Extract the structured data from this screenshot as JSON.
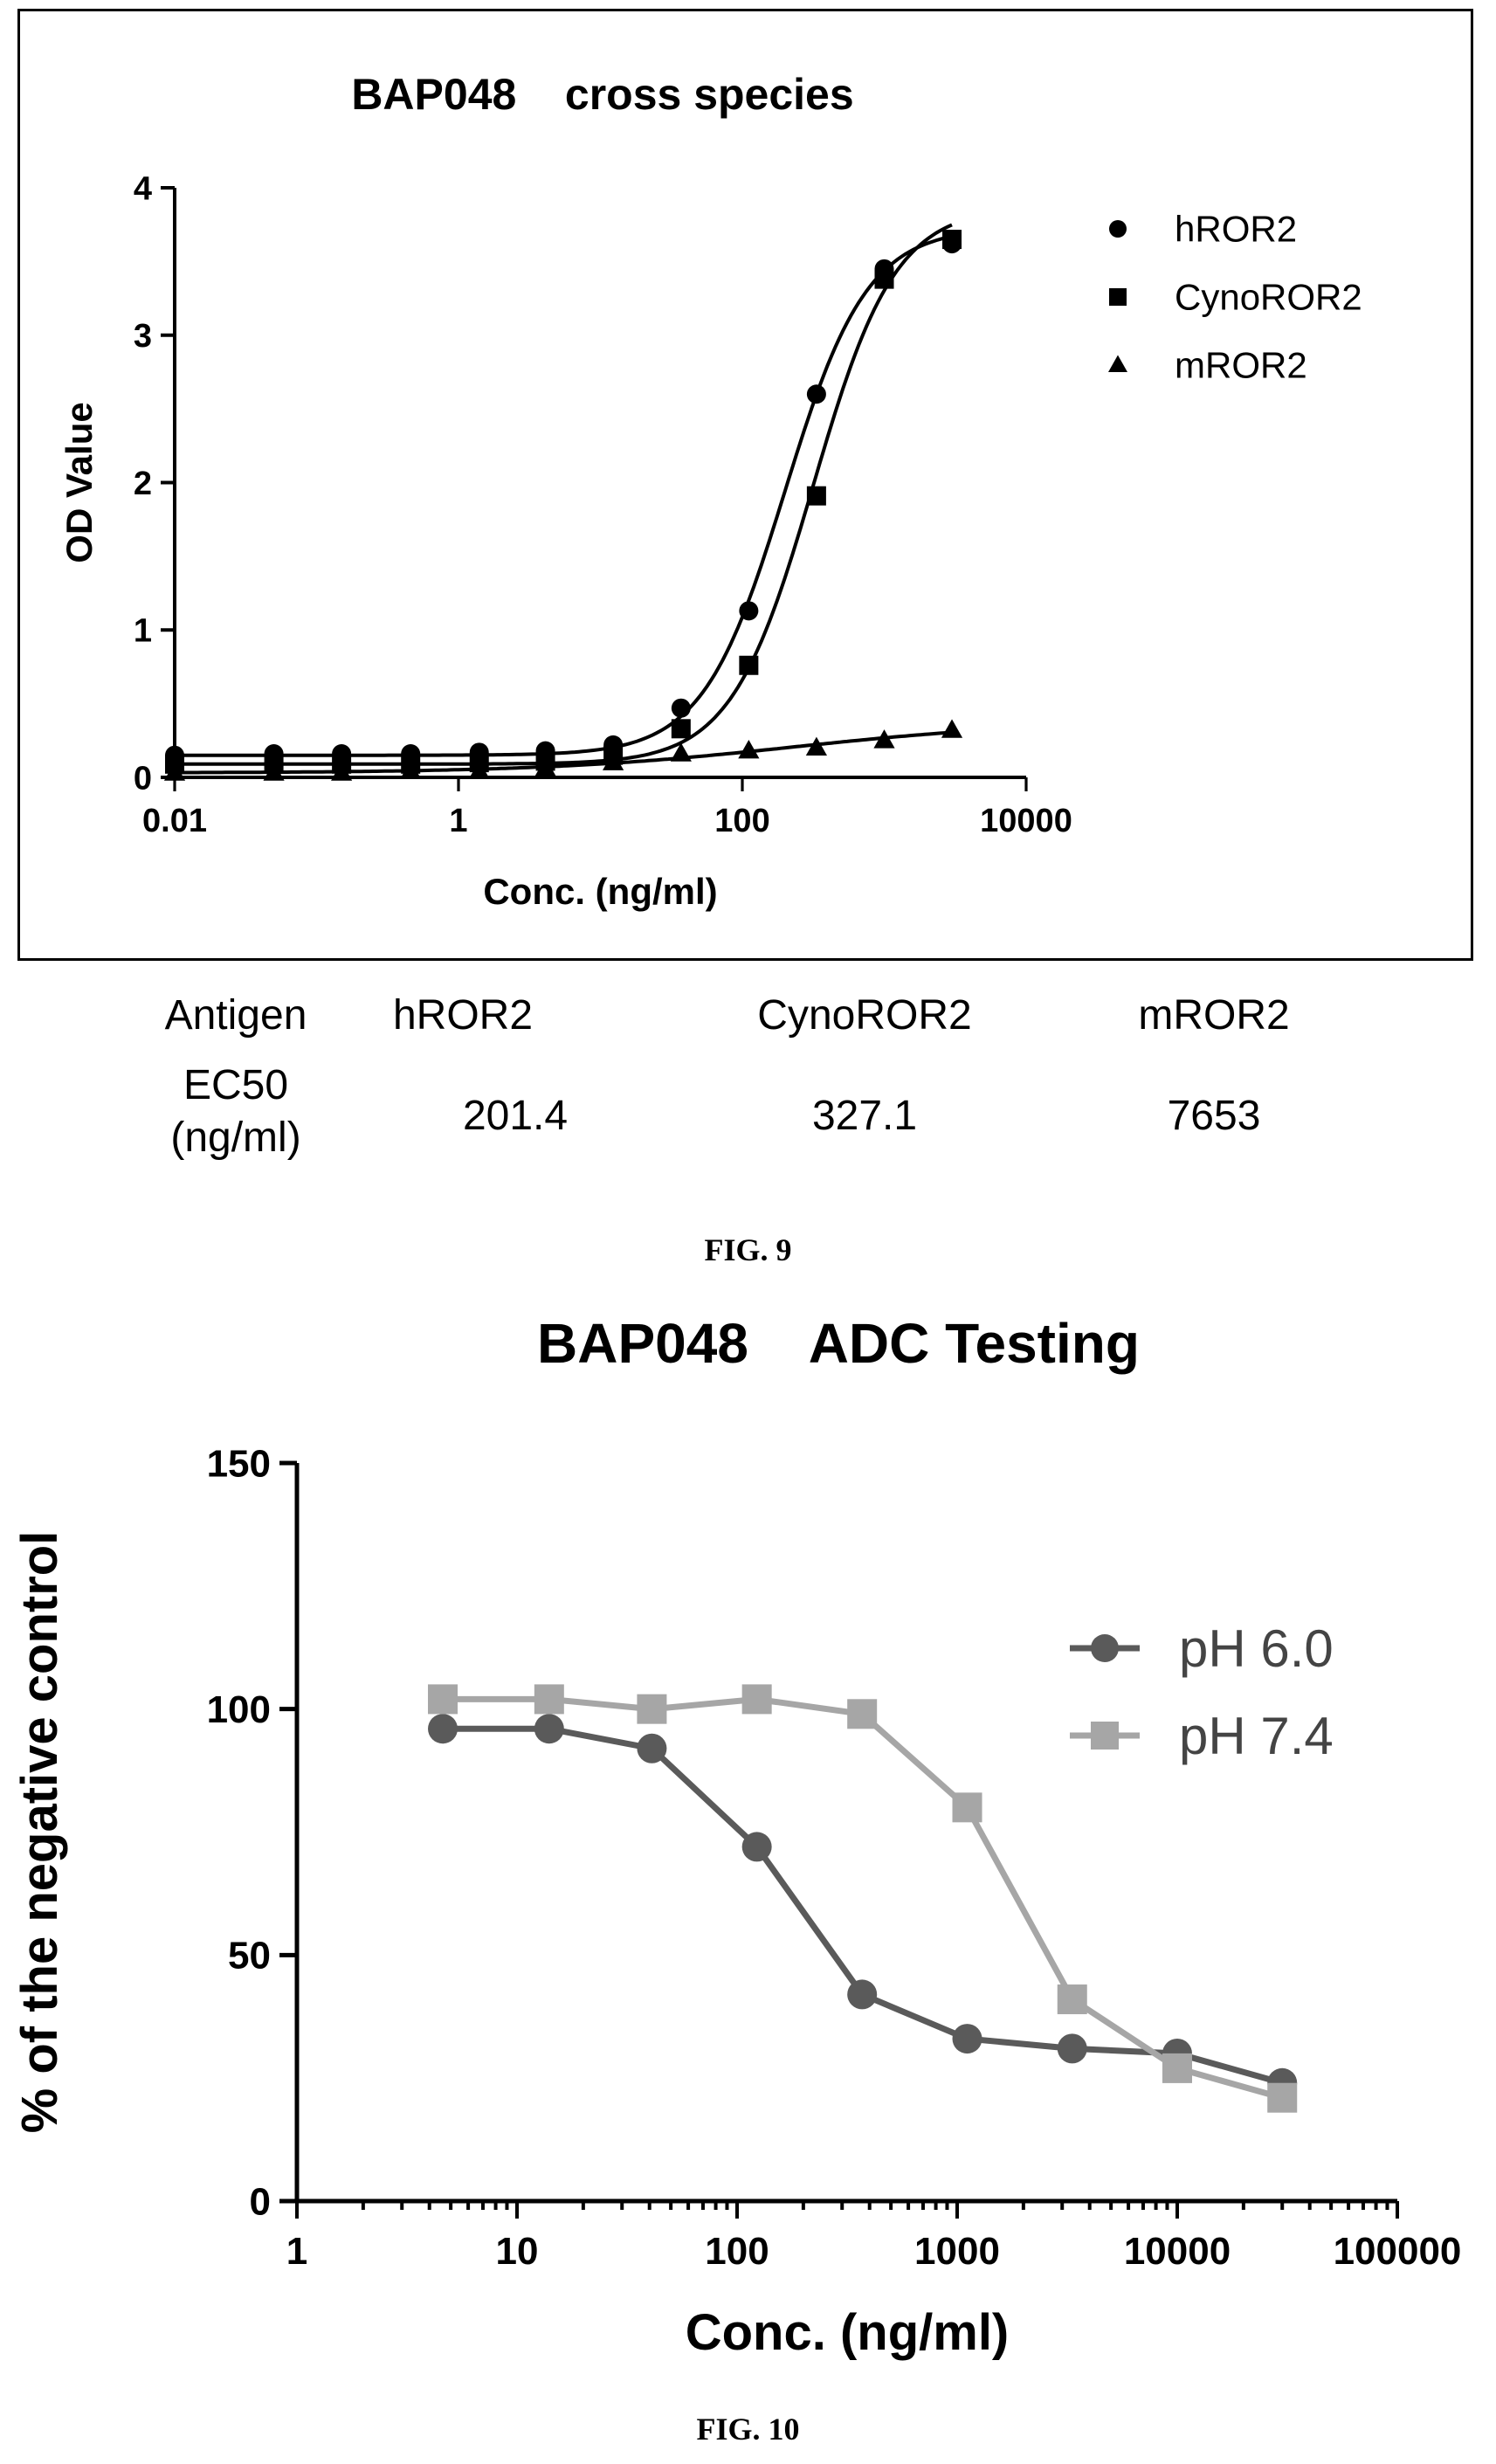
{
  "figures": [
    {
      "caption": "FIG. 9",
      "ec50_table": {
        "header": [
          "Antigen",
          "hROR2",
          "CynoROR2",
          "mROR2"
        ],
        "row_label_line1": "EC50",
        "row_label_line2": "(ng/ml)",
        "values": [
          "201.4",
          "327.1",
          "7653"
        ]
      }
    },
    {
      "caption": "FIG. 10"
    }
  ],
  "chart_data": [
    {
      "type": "scatter",
      "title": "BAP048    cross species",
      "xlabel": "Conc. (ng/ml)",
      "ylabel": "OD Value",
      "x_scale": "log",
      "xlim": [
        0.01,
        10000
      ],
      "ylim": [
        0,
        4
      ],
      "x_ticks": [
        0.01,
        1,
        100,
        10000
      ],
      "x_tick_labels": [
        "0.01",
        "1",
        "100",
        "10000"
      ],
      "y_ticks": [
        0,
        1,
        2,
        3,
        4
      ],
      "y_tick_labels": [
        "0",
        "1",
        "2",
        "3",
        "4"
      ],
      "grid": false,
      "legend_position": "top-right",
      "x": [
        0.01,
        0.05,
        0.15,
        0.46,
        1.4,
        4.1,
        12.3,
        37,
        111,
        333,
        1000,
        3000
      ],
      "series": [
        {
          "name": "hROR2",
          "marker": "circle",
          "fit": "sigmoid",
          "values": [
            0.15,
            0.16,
            0.16,
            0.16,
            0.17,
            0.18,
            0.22,
            0.47,
            1.13,
            2.6,
            3.45,
            3.62
          ]
        },
        {
          "name": "CynoROR2",
          "marker": "square",
          "fit": "sigmoid",
          "values": [
            0.09,
            0.09,
            0.09,
            0.09,
            0.1,
            0.11,
            0.15,
            0.33,
            0.76,
            1.91,
            3.38,
            3.65
          ]
        },
        {
          "name": "mROR2",
          "marker": "triangle",
          "fit": "sigmoid",
          "values": [
            0.03,
            0.03,
            0.03,
            0.04,
            0.04,
            0.06,
            0.1,
            0.16,
            0.18,
            0.2,
            0.25,
            0.32
          ]
        }
      ]
    },
    {
      "type": "line",
      "title": "BAP048    ADC Testing",
      "xlabel": "Conc. (ng/ml)",
      "ylabel": "% of the negative control",
      "x_scale": "log",
      "xlim": [
        1,
        100000
      ],
      "ylim": [
        0,
        150
      ],
      "x_ticks": [
        1,
        10,
        100,
        1000,
        10000,
        100000
      ],
      "x_tick_labels": [
        "1",
        "10",
        "100",
        "1000",
        "10000",
        "100000"
      ],
      "y_ticks": [
        0,
        50,
        100,
        150
      ],
      "y_tick_labels": [
        "0",
        "50",
        "100",
        "150"
      ],
      "grid": false,
      "legend_position": "top-right",
      "x": [
        4.6,
        14,
        41,
        123,
        370,
        1111,
        3333,
        10000,
        30000
      ],
      "series": [
        {
          "name": "pH 6.0",
          "marker": "circle",
          "color": "#5a5a5a",
          "values": [
            96,
            96,
            92,
            72,
            42,
            33,
            31,
            30,
            24
          ]
        },
        {
          "name": "pH 7.4",
          "marker": "square",
          "color": "#a6a6a6",
          "values": [
            102,
            102,
            100,
            102,
            99,
            80,
            41,
            27,
            21
          ]
        }
      ]
    }
  ]
}
